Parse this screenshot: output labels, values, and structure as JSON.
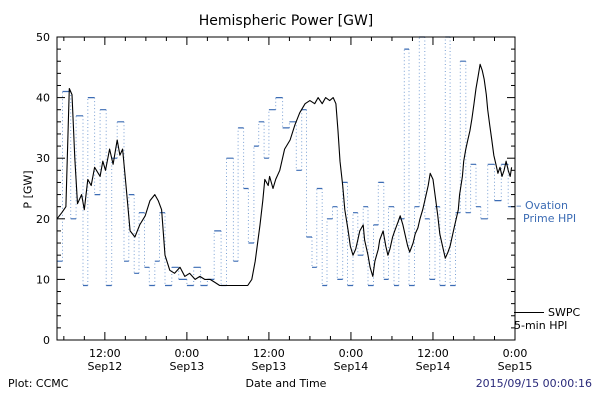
{
  "title": "Hemispheric Power [GW]",
  "footer": {
    "left": "Plot: CCMC",
    "right": "2015/09/15 00:00:16",
    "right_color": "#2a2a7a"
  },
  "legend": {
    "ovation": {
      "marker": "–",
      "line1": "Ovation",
      "line2": "Prime HPI",
      "color": "#3c6cb4"
    },
    "swpc": {
      "line1": "SWPC",
      "line2": "5-min HPI",
      "color": "#000000"
    }
  },
  "chart_data": {
    "type": "line",
    "title": "Hemispheric Power [GW]",
    "xlabel": "Date and Time",
    "ylabel": "P [GW]",
    "ylim": [
      0,
      50
    ],
    "xlim_hours": [
      5,
      72
    ],
    "y_ticks": [
      0,
      10,
      20,
      30,
      40,
      50
    ],
    "y_minor_step": 2,
    "x_minor_step": 3,
    "grid": false,
    "legend_position": "right-outside",
    "x_ticks": [
      {
        "t": 12,
        "line1": "12:00",
        "line2": "Sep12"
      },
      {
        "t": 24,
        "line1": "0:00",
        "line2": "Sep13"
      },
      {
        "t": 36,
        "line1": "12:00",
        "line2": "Sep13"
      },
      {
        "t": 48,
        "line1": "0:00",
        "line2": "Sep14"
      },
      {
        "t": 60,
        "line1": "12:00",
        "line2": "Sep14"
      },
      {
        "t": 72,
        "line1": "0:00",
        "line2": "Sep15"
      }
    ],
    "series": [
      {
        "name": "Ovation Prime HPI",
        "style": "step",
        "color": "#3c6cb4",
        "dot_color": "#7aa0d4",
        "end": 72,
        "points": [
          [
            5,
            13
          ],
          [
            5.8,
            41
          ],
          [
            7,
            20
          ],
          [
            7.8,
            37
          ],
          [
            8.8,
            9
          ],
          [
            9.5,
            40
          ],
          [
            10.5,
            24
          ],
          [
            11.3,
            38
          ],
          [
            12.2,
            9
          ],
          [
            13,
            30
          ],
          [
            13.8,
            36
          ],
          [
            14.8,
            13
          ],
          [
            15.5,
            24
          ],
          [
            16.3,
            11
          ],
          [
            17,
            21
          ],
          [
            17.8,
            12
          ],
          [
            18.5,
            9
          ],
          [
            19.3,
            13
          ],
          [
            20,
            21
          ],
          [
            20.8,
            9
          ],
          [
            21.8,
            12
          ],
          [
            22.8,
            10
          ],
          [
            24,
            9
          ],
          [
            25,
            12
          ],
          [
            26,
            9
          ],
          [
            27,
            10
          ],
          [
            28,
            18
          ],
          [
            29,
            9
          ],
          [
            29.8,
            30
          ],
          [
            30.8,
            13
          ],
          [
            31.5,
            35
          ],
          [
            32.3,
            25
          ],
          [
            33,
            16
          ],
          [
            33.8,
            32
          ],
          [
            34.5,
            36
          ],
          [
            35.3,
            30
          ],
          [
            36,
            38
          ],
          [
            37,
            40
          ],
          [
            38,
            35
          ],
          [
            39,
            36
          ],
          [
            40,
            28
          ],
          [
            40.8,
            38
          ],
          [
            41.5,
            17
          ],
          [
            42.3,
            12
          ],
          [
            43,
            25
          ],
          [
            43.8,
            9
          ],
          [
            44.5,
            20
          ],
          [
            45.3,
            22
          ],
          [
            46,
            10
          ],
          [
            46.8,
            26
          ],
          [
            47.5,
            9
          ],
          [
            48.3,
            21
          ],
          [
            49,
            14
          ],
          [
            49.8,
            22
          ],
          [
            50.5,
            9
          ],
          [
            51.3,
            19
          ],
          [
            52,
            26
          ],
          [
            52.8,
            10
          ],
          [
            53.5,
            22
          ],
          [
            54.3,
            9
          ],
          [
            55,
            20
          ],
          [
            55.8,
            48
          ],
          [
            56.5,
            9
          ],
          [
            57.3,
            22
          ],
          [
            58,
            50
          ],
          [
            58.8,
            20
          ],
          [
            59.5,
            10
          ],
          [
            60.3,
            22
          ],
          [
            61,
            9
          ],
          [
            61.8,
            50
          ],
          [
            62.5,
            9
          ],
          [
            63.3,
            21
          ],
          [
            64,
            46
          ],
          [
            64.8,
            21
          ],
          [
            65.5,
            29
          ],
          [
            66.3,
            22
          ],
          [
            67,
            20
          ],
          [
            68,
            29
          ],
          [
            69,
            23
          ],
          [
            70,
            29
          ],
          [
            71,
            22
          ]
        ]
      },
      {
        "name": "SWPC 5-min HPI",
        "style": "line",
        "color": "#000000",
        "points": [
          [
            5,
            20
          ],
          [
            5.7,
            21
          ],
          [
            6.3,
            22
          ],
          [
            6.8,
            41.5
          ],
          [
            7.2,
            40.5
          ],
          [
            7.6,
            30
          ],
          [
            8,
            22.5
          ],
          [
            8.6,
            24
          ],
          [
            9,
            21.5
          ],
          [
            9.5,
            26.5
          ],
          [
            10,
            25.5
          ],
          [
            10.5,
            28.5
          ],
          [
            11.3,
            27
          ],
          [
            11.7,
            29.5
          ],
          [
            12.1,
            28
          ],
          [
            12.7,
            31.5
          ],
          [
            13.2,
            29
          ],
          [
            13.8,
            33
          ],
          [
            14.2,
            30.5
          ],
          [
            14.6,
            31.5
          ],
          [
            15.1,
            25.5
          ],
          [
            15.7,
            18
          ],
          [
            16.4,
            17
          ],
          [
            17.1,
            19
          ],
          [
            17.9,
            20.5
          ],
          [
            18.6,
            23
          ],
          [
            19.3,
            24
          ],
          [
            19.8,
            23
          ],
          [
            20.3,
            21.5
          ],
          [
            20.8,
            14
          ],
          [
            21.5,
            11.5
          ],
          [
            22.2,
            11
          ],
          [
            23,
            12
          ],
          [
            23.7,
            10.5
          ],
          [
            24.4,
            11
          ],
          [
            25.2,
            10
          ],
          [
            25.9,
            10.5
          ],
          [
            26.6,
            10
          ],
          [
            27.4,
            10
          ],
          [
            28.1,
            9.5
          ],
          [
            28.8,
            9
          ],
          [
            30.3,
            9
          ],
          [
            31.8,
            9
          ],
          [
            32.9,
            9
          ],
          [
            33.5,
            10
          ],
          [
            34,
            13
          ],
          [
            34.4,
            16.5
          ],
          [
            34.7,
            19
          ],
          [
            35.1,
            23
          ],
          [
            35.4,
            26.5
          ],
          [
            35.9,
            25.5
          ],
          [
            36.1,
            27
          ],
          [
            36.6,
            25
          ],
          [
            37,
            26.5
          ],
          [
            37.6,
            28
          ],
          [
            38.3,
            31.5
          ],
          [
            39.1,
            33
          ],
          [
            39.8,
            35.5
          ],
          [
            40.5,
            37.5
          ],
          [
            41.3,
            39
          ],
          [
            42,
            39.5
          ],
          [
            42.7,
            39
          ],
          [
            43.2,
            40
          ],
          [
            43.8,
            39
          ],
          [
            44.3,
            40
          ],
          [
            44.9,
            39.5
          ],
          [
            45.4,
            40
          ],
          [
            45.8,
            39
          ],
          [
            46.1,
            34.5
          ],
          [
            46.4,
            29.5
          ],
          [
            46.8,
            25.5
          ],
          [
            47.1,
            21.5
          ],
          [
            47.6,
            18
          ],
          [
            47.9,
            15.5
          ],
          [
            48.3,
            14
          ],
          [
            48.7,
            15
          ],
          [
            49,
            16.5
          ],
          [
            49.3,
            18
          ],
          [
            49.8,
            19
          ],
          [
            50,
            16.5
          ],
          [
            50.5,
            14
          ],
          [
            50.8,
            12
          ],
          [
            51.2,
            10.5
          ],
          [
            51.5,
            13
          ],
          [
            52,
            15
          ],
          [
            52.2,
            16.5
          ],
          [
            52.7,
            18
          ],
          [
            53.1,
            15.5
          ],
          [
            53.4,
            14
          ],
          [
            53.7,
            15
          ],
          [
            54.1,
            17
          ],
          [
            54.4,
            18
          ],
          [
            54.9,
            19.5
          ],
          [
            55.2,
            20.5
          ],
          [
            55.6,
            19
          ],
          [
            55.9,
            17.5
          ],
          [
            56.3,
            15.5
          ],
          [
            56.6,
            14.5
          ],
          [
            57.1,
            16
          ],
          [
            57.4,
            17.5
          ],
          [
            57.8,
            18.5
          ],
          [
            58.1,
            20
          ],
          [
            58.5,
            21.5
          ],
          [
            58.8,
            23
          ],
          [
            59.3,
            25.5
          ],
          [
            59.6,
            27.5
          ],
          [
            60,
            26.5
          ],
          [
            60.3,
            24
          ],
          [
            60.7,
            20.5
          ],
          [
            61,
            17.5
          ],
          [
            61.5,
            15
          ],
          [
            61.8,
            13.5
          ],
          [
            62.2,
            14.5
          ],
          [
            62.5,
            15.5
          ],
          [
            62.9,
            17.5
          ],
          [
            63.2,
            19
          ],
          [
            63.7,
            21.5
          ],
          [
            63.9,
            24
          ],
          [
            64.3,
            27
          ],
          [
            64.5,
            29.5
          ],
          [
            64.8,
            31.5
          ],
          [
            65.1,
            33
          ],
          [
            65.4,
            34.5
          ],
          [
            65.7,
            36.5
          ],
          [
            66,
            39
          ],
          [
            66.3,
            41.5
          ],
          [
            66.6,
            43.5
          ],
          [
            66.9,
            45.5
          ],
          [
            67.2,
            44.5
          ],
          [
            67.5,
            43
          ],
          [
            67.8,
            40.5
          ],
          [
            68,
            38
          ],
          [
            68.3,
            35.5
          ],
          [
            68.6,
            33
          ],
          [
            68.9,
            30.5
          ],
          [
            69.2,
            29
          ],
          [
            69.5,
            27.5
          ],
          [
            69.8,
            28.5
          ],
          [
            70.1,
            27
          ],
          [
            70.4,
            28
          ],
          [
            70.7,
            29.5
          ],
          [
            71,
            28
          ],
          [
            71.3,
            27
          ],
          [
            71.5,
            28.5
          ]
        ]
      }
    ]
  }
}
